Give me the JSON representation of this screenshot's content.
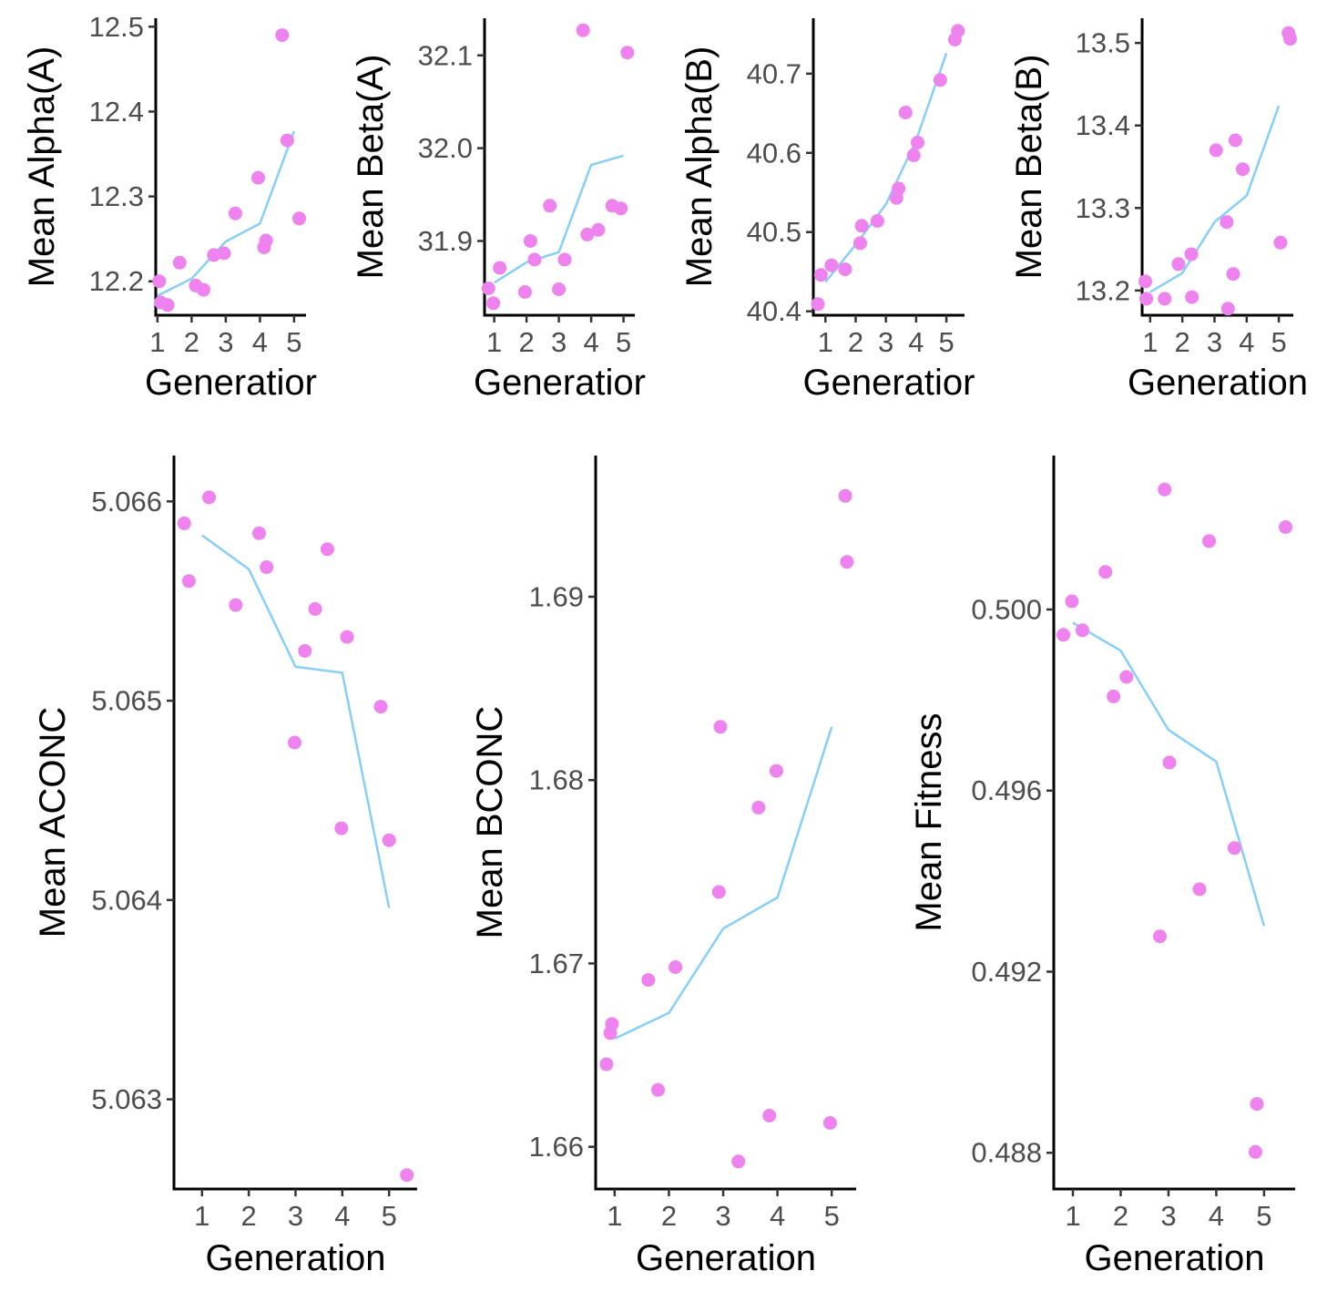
{
  "colors": {
    "points": "#EE82EE",
    "trend": "#87CEFA"
  },
  "chart_data": [
    {
      "type": "scatter",
      "xlabel": "Generatior",
      "ylabel": "Mean Alpha(A)",
      "xlim": [
        0.95,
        5.35
      ],
      "ylim": [
        12.16,
        12.51
      ],
      "xticks": [
        1,
        2,
        3,
        4,
        5
      ],
      "yticks": [
        12.2,
        12.3,
        12.4,
        12.5
      ],
      "ytick_labels": [
        "12.2",
        "12.3",
        "12.4",
        "12.5"
      ],
      "points": [
        [
          1.05,
          12.2
        ],
        [
          1.1,
          12.175
        ],
        [
          1.3,
          12.172
        ],
        [
          1.65,
          12.222
        ],
        [
          2.12,
          12.195
        ],
        [
          2.35,
          12.19
        ],
        [
          2.65,
          12.231
        ],
        [
          2.95,
          12.233
        ],
        [
          3.28,
          12.28
        ],
        [
          3.95,
          12.322
        ],
        [
          4.12,
          12.24
        ],
        [
          4.18,
          12.248
        ],
        [
          4.65,
          12.49
        ],
        [
          4.8,
          12.366
        ],
        [
          5.15,
          12.274
        ]
      ],
      "trend": [
        [
          1,
          12.183
        ],
        [
          2,
          12.203
        ],
        [
          3,
          12.247
        ],
        [
          4,
          12.268
        ],
        [
          5,
          12.377
        ]
      ]
    },
    {
      "type": "scatter",
      "xlabel": "Generatior",
      "ylabel": "Mean Beta(A)",
      "xlim": [
        0.7,
        5.35
      ],
      "ylim": [
        31.82,
        32.14
      ],
      "xticks": [
        1,
        2,
        3,
        4,
        5
      ],
      "yticks": [
        31.9,
        32.0,
        32.1
      ],
      "ytick_labels": [
        "31.9",
        "32.0",
        "32.1"
      ],
      "points": [
        [
          0.82,
          31.849
        ],
        [
          0.97,
          31.833
        ],
        [
          1.17,
          31.871
        ],
        [
          1.95,
          31.845
        ],
        [
          2.12,
          31.9
        ],
        [
          2.25,
          31.88
        ],
        [
          2.72,
          31.938
        ],
        [
          3,
          31.848
        ],
        [
          3.18,
          31.88
        ],
        [
          3.75,
          32.127
        ],
        [
          3.88,
          31.907
        ],
        [
          4.22,
          31.912
        ],
        [
          4.65,
          31.938
        ],
        [
          4.92,
          31.935
        ],
        [
          5.12,
          32.103
        ]
      ],
      "trend": [
        [
          1,
          31.855
        ],
        [
          2,
          31.877
        ],
        [
          3,
          31.888
        ],
        [
          4,
          31.982
        ],
        [
          5,
          31.992
        ]
      ]
    },
    {
      "type": "scatter",
      "xlabel": "Generatior",
      "ylabel": "Mean Alpha(B)",
      "xlim": [
        0.6,
        5.6
      ],
      "ylim": [
        40.395,
        40.77
      ],
      "xticks": [
        1,
        2,
        3,
        4,
        5
      ],
      "yticks": [
        40.4,
        40.5,
        40.6,
        40.7
      ],
      "ytick_labels": [
        "40.4",
        "40.5",
        "40.6",
        "40.7"
      ],
      "points": [
        [
          0.75,
          40.409
        ],
        [
          0.85,
          40.446
        ],
        [
          1.2,
          40.458
        ],
        [
          1.65,
          40.453
        ],
        [
          2.15,
          40.486
        ],
        [
          2.2,
          40.508
        ],
        [
          2.72,
          40.514
        ],
        [
          3.35,
          40.543
        ],
        [
          3.42,
          40.555
        ],
        [
          3.65,
          40.651
        ],
        [
          3.92,
          40.597
        ],
        [
          4.05,
          40.613
        ],
        [
          4.8,
          40.692
        ],
        [
          5.28,
          40.743
        ],
        [
          5.38,
          40.754
        ]
      ],
      "trend": [
        [
          1,
          40.437
        ],
        [
          2,
          40.484
        ],
        [
          3,
          40.535
        ],
        [
          4,
          40.616
        ],
        [
          5,
          40.726
        ]
      ]
    },
    {
      "type": "scatter",
      "xlabel": "Generation",
      "ylabel": "Mean Beta(B)",
      "xlim": [
        0.75,
        5.45
      ],
      "ylim": [
        13.17,
        13.53
      ],
      "xticks": [
        1,
        2,
        3,
        4,
        5
      ],
      "yticks": [
        13.2,
        13.3,
        13.4,
        13.5
      ],
      "ytick_labels": [
        "13.2",
        "13.3",
        "13.4",
        "13.5"
      ],
      "points": [
        [
          0.85,
          13.211
        ],
        [
          0.88,
          13.19
        ],
        [
          1.45,
          13.19
        ],
        [
          1.88,
          13.232
        ],
        [
          2.28,
          13.244
        ],
        [
          2.3,
          13.192
        ],
        [
          3.05,
          13.37
        ],
        [
          3.38,
          13.283
        ],
        [
          3.42,
          13.178
        ],
        [
          3.58,
          13.22
        ],
        [
          3.65,
          13.382
        ],
        [
          3.88,
          13.347
        ],
        [
          5.05,
          13.258
        ],
        [
          5.3,
          13.512
        ],
        [
          5.35,
          13.505
        ]
      ],
      "trend": [
        [
          1,
          13.198
        ],
        [
          2,
          13.221
        ],
        [
          3,
          13.283
        ],
        [
          4,
          13.315
        ],
        [
          5,
          13.424
        ]
      ]
    },
    {
      "type": "scatter",
      "xlabel": "Generation",
      "ylabel": "Mean ACONC",
      "xlim": [
        0.4,
        5.6
      ],
      "ylim": [
        5.06255,
        5.06623
      ],
      "xticks": [
        1,
        2,
        3,
        4,
        5
      ],
      "yticks": [
        5.063,
        5.064,
        5.065,
        5.066
      ],
      "ytick_labels": [
        "5.063",
        "5.064",
        "5.065",
        "5.066"
      ],
      "points": [
        [
          0.62,
          5.06589
        ],
        [
          0.72,
          5.0656
        ],
        [
          1.15,
          5.06602
        ],
        [
          1.72,
          5.06548
        ],
        [
          2.22,
          5.06584
        ],
        [
          2.38,
          5.06567
        ],
        [
          2.98,
          5.06479
        ],
        [
          3.2,
          5.06525
        ],
        [
          3.42,
          5.06546
        ],
        [
          3.68,
          5.06576
        ],
        [
          3.98,
          5.06436
        ],
        [
          4.1,
          5.06532
        ],
        [
          4.82,
          5.06497
        ],
        [
          5,
          5.0643
        ],
        [
          5.38,
          5.06262
        ]
      ],
      "trend": [
        [
          1,
          5.06583
        ],
        [
          2,
          5.06566
        ],
        [
          3,
          5.06517
        ],
        [
          4,
          5.06514
        ],
        [
          5,
          5.06396
        ]
      ]
    },
    {
      "type": "scatter",
      "xlabel": "Generation",
      "ylabel": "Mean BCONC",
      "xlim": [
        0.65,
        5.45
      ],
      "ylim": [
        1.6577,
        1.6977
      ],
      "xticks": [
        1,
        2,
        3,
        4,
        5
      ],
      "yticks": [
        1.66,
        1.67,
        1.68,
        1.69
      ],
      "ytick_labels": [
        "1.66",
        "1.67",
        "1.68",
        "1.69"
      ],
      "points": [
        [
          0.85,
          1.6645
        ],
        [
          0.92,
          1.6662
        ],
        [
          0.95,
          1.6667
        ],
        [
          1.62,
          1.6691
        ],
        [
          1.8,
          1.6631
        ],
        [
          2.12,
          1.6698
        ],
        [
          2.92,
          1.6739
        ],
        [
          2.95,
          1.6829
        ],
        [
          3.28,
          1.6592
        ],
        [
          3.65,
          1.6785
        ],
        [
          3.85,
          1.6617
        ],
        [
          3.98,
          1.6805
        ],
        [
          4.97,
          1.6613
        ],
        [
          5.25,
          1.6955
        ],
        [
          5.28,
          1.6919
        ]
      ],
      "trend": [
        [
          1,
          1.6659
        ],
        [
          2,
          1.6673
        ],
        [
          3,
          1.6719
        ],
        [
          4,
          1.6736
        ],
        [
          5,
          1.6829
        ]
      ]
    },
    {
      "type": "scatter",
      "xlabel": "Generation",
      "ylabel": "Mean Fitness",
      "xlim": [
        0.6,
        5.65
      ],
      "ylim": [
        0.4872,
        0.5034
      ],
      "xticks": [
        1,
        2,
        3,
        4,
        5
      ],
      "yticks": [
        0.488,
        0.492,
        0.496,
        0.5
      ],
      "ytick_labels": [
        "0.488",
        "0.492",
        "0.496",
        "0.500"
      ],
      "points": [
        [
          0.8,
          0.49944
        ],
        [
          0.98,
          0.50018
        ],
        [
          1.2,
          0.49954
        ],
        [
          1.68,
          0.50083
        ],
        [
          1.85,
          0.49808
        ],
        [
          2.12,
          0.49851
        ],
        [
          2.82,
          0.49278
        ],
        [
          2.92,
          0.50265
        ],
        [
          3.02,
          0.49662
        ],
        [
          3.65,
          0.49382
        ],
        [
          3.85,
          0.50151
        ],
        [
          4.38,
          0.49473
        ],
        [
          4.82,
          0.48802
        ],
        [
          4.85,
          0.48908
        ],
        [
          5.45,
          0.50182
        ]
      ],
      "trend": [
        [
          1,
          0.49971
        ],
        [
          2,
          0.49909
        ],
        [
          3,
          0.49734
        ],
        [
          4,
          0.49664
        ],
        [
          5,
          0.49301
        ]
      ]
    }
  ]
}
